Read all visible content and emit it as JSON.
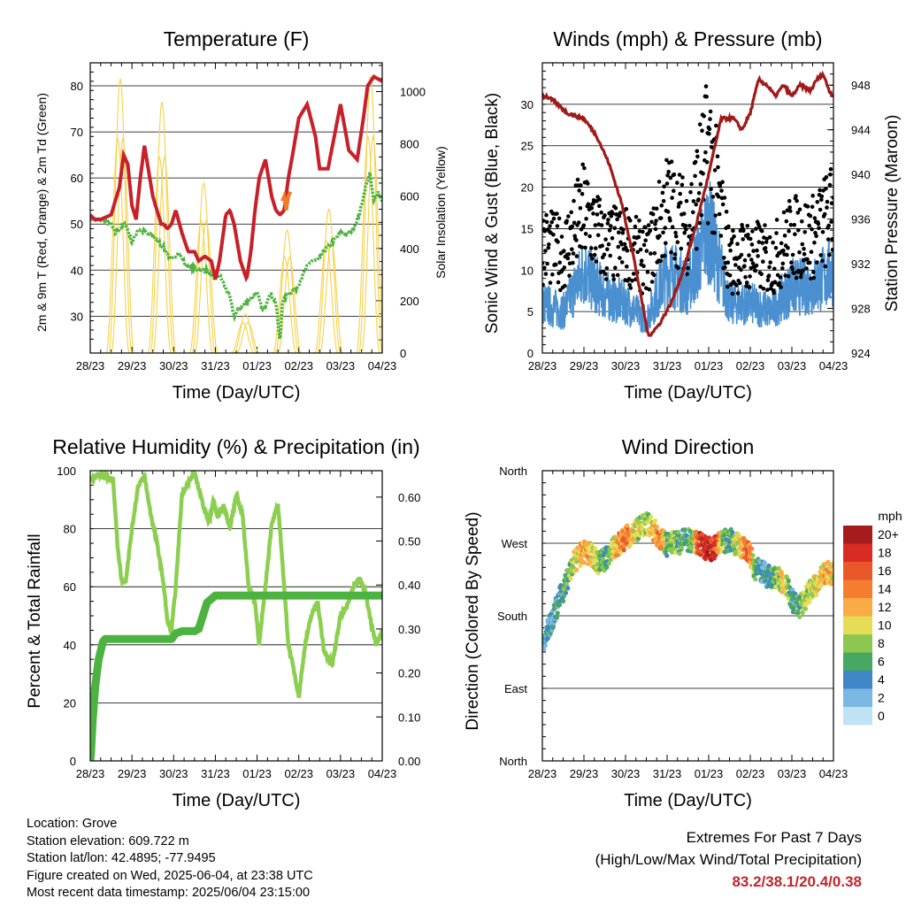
{
  "chart_data": [
    {
      "type": "line",
      "title": "Temperature (F)",
      "xlabel": "Time (Day/UTC)",
      "ylabel": "2m & 9m T (Red, Orange) & 2m Td (Green)",
      "y2label": "Solar Insolation (Yellow)",
      "x_ticks": [
        "28/23",
        "29/23",
        "30/23",
        "31/23",
        "01/23",
        "02/23",
        "03/23",
        "04/23"
      ],
      "ylim": [
        22,
        85
      ],
      "y_ticks": [
        30,
        40,
        50,
        60,
        70,
        80
      ],
      "y2lim": [
        0,
        1110
      ],
      "y2_ticks": [
        0,
        200,
        400,
        600,
        800,
        1000
      ],
      "grid": "horizontal",
      "series": [
        {
          "key": "t2m",
          "color": "#c8202a",
          "axis": "left",
          "x": [
            0,
            0.1,
            0.25,
            0.5,
            0.7,
            0.8,
            0.9,
            1.0,
            1.1,
            1.2,
            1.3,
            1.5,
            1.7,
            1.75,
            1.85,
            1.95,
            2.05,
            2.2,
            2.35,
            2.5,
            2.6,
            2.75,
            2.9,
            3.0,
            3.1,
            3.25,
            3.35,
            3.45,
            3.6,
            3.75,
            3.85,
            3.95,
            4.05,
            4.2,
            4.35,
            4.45,
            4.55,
            4.65,
            4.75,
            4.85,
            5.0,
            5.2,
            5.4,
            5.5,
            5.7,
            5.85,
            6.0,
            6.2,
            6.4,
            6.55,
            6.65,
            6.8,
            7.0
          ],
          "values": [
            52,
            51,
            51,
            52,
            58,
            65,
            63,
            54,
            51,
            60,
            67,
            56,
            50,
            50,
            49,
            50,
            53,
            48,
            44,
            44,
            42,
            43,
            42,
            38,
            42,
            52,
            53,
            50,
            42,
            38,
            44,
            53,
            60,
            64,
            56,
            53,
            52,
            53,
            60,
            65,
            73,
            76,
            69,
            62,
            62,
            69,
            76,
            66,
            64,
            73,
            80,
            82,
            81
          ]
        },
        {
          "key": "t9m",
          "color": "#f07c2a",
          "axis": "left",
          "x": [
            4.6,
            4.65,
            4.7,
            4.75,
            4.8
          ],
          "values": [
            55,
            56,
            53,
            56,
            57
          ]
        },
        {
          "key": "td2m",
          "color": "#4db340",
          "axis": "left",
          "x": [
            0,
            0.2,
            0.35,
            0.5,
            0.6,
            0.7,
            0.85,
            1.0,
            1.15,
            1.35,
            1.55,
            1.75,
            1.95,
            2.1,
            2.3,
            2.6,
            2.8,
            2.95,
            3.1,
            3.25,
            3.35,
            3.45,
            3.6,
            3.75,
            3.85,
            4.0,
            4.15,
            4.3,
            4.45,
            4.55,
            4.6,
            4.75,
            4.95,
            5.15,
            5.3,
            5.45,
            5.6,
            5.8,
            6.0,
            6.2,
            6.3,
            6.45,
            6.6,
            6.7,
            6.8,
            6.9,
            7.0
          ],
          "values": [
            51,
            51,
            51,
            50,
            48,
            49,
            50,
            46,
            49,
            48,
            47,
            45,
            42,
            44,
            41,
            40,
            40,
            38,
            39,
            36,
            34,
            30,
            32,
            33,
            34,
            35,
            31,
            35,
            33,
            24,
            33,
            35,
            36,
            40,
            42,
            42,
            44,
            46,
            48,
            48,
            49,
            52,
            58,
            61,
            55,
            57,
            55
          ]
        }
      ],
      "insolation": {
        "key": "solar",
        "color": "#f5d24a",
        "axis": "right",
        "days": [
          0,
          1,
          2,
          3,
          4,
          5,
          6
        ],
        "peaks": [
          1050,
          960,
          650,
          150,
          470,
          550,
          1060
        ]
      }
    },
    {
      "type": "scatter+line",
      "title": "Winds (mph) & Pressure (mb)",
      "xlabel": "Time (Day/UTC)",
      "ylabel": "Sonic Wind & Gust (Blue, Black)",
      "y2label": "Station Pressure (Maroon)",
      "x_ticks": [
        "28/23",
        "29/23",
        "30/23",
        "31/23",
        "01/23",
        "02/23",
        "03/23",
        "04/23"
      ],
      "ylim": [
        0,
        35
      ],
      "y_ticks": [
        0,
        5,
        10,
        15,
        20,
        25,
        30
      ],
      "y2lim": [
        924,
        950
      ],
      "y2_ticks": [
        924,
        928,
        932,
        936,
        940,
        944,
        948
      ],
      "grid": "horizontal",
      "wind": {
        "key": "wind",
        "color": "#4a90d0",
        "x": [
          0,
          0.5,
          1.0,
          1.5,
          2.0,
          2.5,
          3.0,
          3.5,
          4.0,
          4.5,
          5.0,
          5.5,
          6.0,
          6.5,
          7.0
        ],
        "values": [
          6,
          5,
          10,
          7,
          6,
          4,
          10,
          8,
          15,
          6,
          6,
          5,
          8,
          8,
          10
        ]
      },
      "gust": {
        "key": "gust",
        "color": "#000000",
        "x": [
          0,
          0.5,
          1.0,
          1.5,
          2.0,
          2.5,
          3.0,
          3.5,
          4.0,
          4.5,
          5.0,
          5.5,
          6.0,
          6.5,
          7.0
        ],
        "values": [
          13,
          12,
          17,
          13,
          13,
          11,
          18,
          15,
          25,
          11,
          12,
          11,
          14,
          14,
          17
        ]
      },
      "pressure": {
        "key": "pressure",
        "color": "#a01a1a",
        "axis": "right",
        "x": [
          0,
          0.1,
          0.3,
          0.6,
          1.0,
          1.3,
          1.6,
          1.9,
          2.2,
          2.4,
          2.55,
          2.8,
          3.1,
          3.4,
          3.7,
          4.0,
          4.3,
          4.6,
          4.8,
          5.0,
          5.2,
          5.4,
          5.6,
          5.8,
          6.0,
          6.2,
          6.45,
          6.6,
          6.75,
          6.9,
          7.0
        ],
        "values": [
          947,
          947,
          946.5,
          945.5,
          945,
          943.5,
          941,
          937.5,
          932.5,
          928.5,
          925.5,
          926.5,
          928.5,
          931.5,
          935.5,
          940,
          945,
          945,
          944,
          945.5,
          948.5,
          948,
          947,
          948,
          947,
          948,
          947.5,
          948.5,
          949,
          947.5,
          947
        ]
      }
    },
    {
      "type": "line",
      "title": "Relative Humidity (%) & Precipitation (in)",
      "xlabel": "Time (Day/UTC)",
      "ylabel": "Percent & Total Rainfall",
      "x_ticks": [
        "28/23",
        "29/23",
        "30/23",
        "31/23",
        "01/23",
        "02/23",
        "03/23",
        "04/23"
      ],
      "ylim": [
        0,
        100
      ],
      "y_ticks": [
        0,
        20,
        40,
        60,
        80,
        100
      ],
      "y2lim": [
        0,
        0.66
      ],
      "y2_ticks": [
        "0.00",
        "0.10",
        "0.20",
        "0.30",
        "0.40",
        "0.50",
        "0.60"
      ],
      "grid": "horizontal",
      "series": [
        {
          "key": "rh",
          "color": "#8ccf50",
          "axis": "left",
          "x": [
            0,
            0.1,
            0.2,
            0.35,
            0.55,
            0.65,
            0.75,
            0.85,
            1.0,
            1.15,
            1.3,
            1.45,
            1.6,
            1.75,
            1.85,
            1.95,
            2.05,
            2.2,
            2.35,
            2.5,
            2.6,
            2.75,
            2.85,
            2.95,
            3.05,
            3.2,
            3.35,
            3.5,
            3.65,
            3.8,
            3.95,
            4.05,
            4.2,
            4.35,
            4.5,
            4.6,
            4.75,
            4.9,
            5.0,
            5.15,
            5.3,
            5.45,
            5.6,
            5.8,
            6.0,
            6.2,
            6.3,
            6.45,
            6.6,
            6.7,
            6.85,
            7.0
          ],
          "values": [
            97,
            98,
            99,
            98,
            97,
            75,
            62,
            62,
            80,
            95,
            98,
            85,
            75,
            62,
            48,
            45,
            60,
            92,
            96,
            99,
            94,
            86,
            82,
            90,
            84,
            88,
            80,
            92,
            85,
            60,
            55,
            40,
            60,
            82,
            88,
            70,
            40,
            30,
            22,
            40,
            50,
            55,
            38,
            33,
            50,
            55,
            60,
            63,
            58,
            50,
            40,
            45
          ]
        },
        {
          "key": "precip",
          "color": "#4db340",
          "axis": "right",
          "x": [
            0,
            0.02,
            0.05,
            0.08,
            0.12,
            0.16,
            0.2,
            0.25,
            0.3,
            0.35,
            0.5,
            0.8,
            1.2,
            1.6,
            1.95,
            2.05,
            2.2,
            2.35,
            2.5,
            2.6,
            2.7,
            2.8,
            3.0,
            3.5,
            4.0,
            5.0,
            6.0,
            7.0
          ],
          "values": [
            0,
            0.02,
            0.08,
            0.12,
            0.17,
            0.2,
            0.23,
            0.25,
            0.27,
            0.277,
            0.277,
            0.277,
            0.277,
            0.277,
            0.277,
            0.29,
            0.295,
            0.295,
            0.295,
            0.3,
            0.33,
            0.36,
            0.376,
            0.376,
            0.376,
            0.376,
            0.376,
            0.376
          ]
        }
      ]
    },
    {
      "type": "scatter",
      "title": "Wind Direction",
      "xlabel": "Time (Day/UTC)",
      "ylabel": "Direction (Colored By Speed)",
      "x_ticks": [
        "28/23",
        "29/23",
        "30/23",
        "31/23",
        "01/23",
        "02/23",
        "03/23",
        "04/23"
      ],
      "y_ticks": [
        "North",
        "East",
        "South",
        "West",
        "North"
      ],
      "ylim": [
        0,
        360
      ],
      "grid": "horizontal",
      "x": [
        0,
        0.15,
        0.3,
        0.45,
        0.6,
        0.75,
        0.9,
        1.05,
        1.2,
        1.35,
        1.5,
        1.65,
        1.8,
        1.95,
        2.1,
        2.25,
        2.4,
        2.55,
        2.7,
        2.85,
        3.0,
        3.15,
        3.3,
        3.45,
        3.6,
        3.75,
        3.9,
        4.05,
        4.2,
        4.35,
        4.5,
        4.65,
        4.8,
        4.95,
        5.1,
        5.25,
        5.4,
        5.55,
        5.7,
        5.85,
        6.0,
        6.15,
        6.3,
        6.45,
        6.6,
        6.75,
        6.9,
        7.0
      ],
      "values": [
        140,
        165,
        185,
        205,
        225,
        245,
        255,
        260,
        255,
        245,
        250,
        260,
        268,
        275,
        280,
        285,
        290,
        295,
        285,
        275,
        268,
        272,
        270,
        275,
        272,
        270,
        265,
        262,
        268,
        272,
        275,
        270,
        265,
        262,
        240,
        235,
        230,
        228,
        225,
        220,
        200,
        190,
        198,
        212,
        218,
        230,
        235,
        232
      ],
      "speeds": [
        4,
        4,
        3,
        5,
        6,
        9,
        11,
        13,
        10,
        8,
        5,
        8,
        12,
        14,
        13,
        10,
        8,
        9,
        12,
        15,
        6,
        8,
        6,
        5,
        7,
        17,
        18,
        19,
        16,
        7,
        5,
        9,
        12,
        16,
        8,
        3,
        4,
        6,
        9,
        11,
        4,
        6,
        8,
        9,
        10,
        11,
        12,
        10
      ],
      "colorbar": {
        "title": "mph",
        "labels": [
          "20+",
          "18",
          "16",
          "14",
          "12",
          "10",
          "8",
          "6",
          "4",
          "2",
          "0"
        ],
        "colors": [
          "#a61c1c",
          "#d92b24",
          "#e8582b",
          "#f47d30",
          "#f9ac46",
          "#e6dd56",
          "#8cc850",
          "#47a862",
          "#3f86c7",
          "#7cb6e3",
          "#bfe3f5"
        ]
      }
    }
  ],
  "info": {
    "location": "Location: Grove",
    "elevation": "Station elevation: 609.722 m",
    "latlon": "Station lat/lon: 42.4895; -77.9495",
    "created": "Figure created on Wed, 2025-06-04, at 23:38 UTC",
    "recent": "Most recent data timestamp: 2025/06/04 23:15:00"
  },
  "extremes": {
    "title": "Extremes For Past 7 Days",
    "subtitle": "(High/Low/Max Wind/Total Precipitation)",
    "values": "83.2/38.1/20.4/0.38"
  }
}
